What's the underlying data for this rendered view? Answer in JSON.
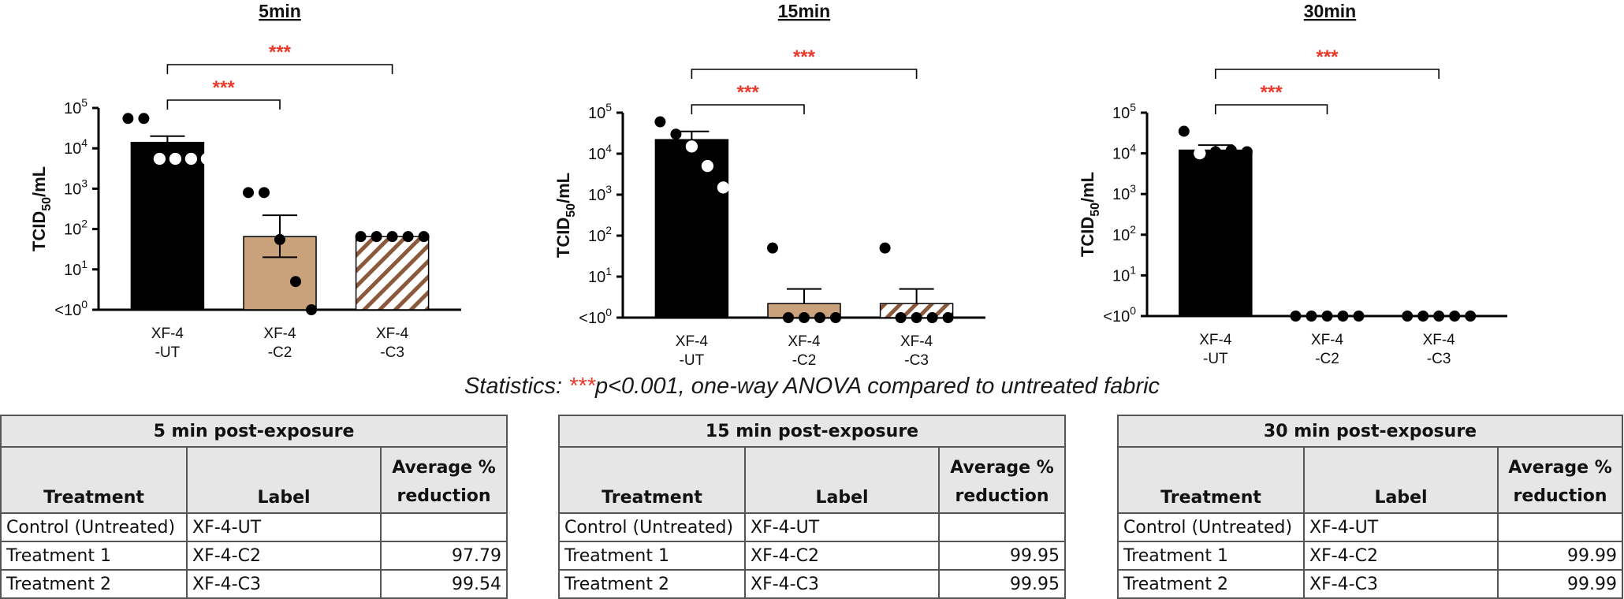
{
  "chart_data": [
    {
      "type": "bar",
      "title": "5min",
      "ylabel": "TCID50/mL",
      "yscale": "log",
      "ylim": [
        1,
        100000
      ],
      "yticks": [
        "<10^0",
        "10^1",
        "10^2",
        "10^3",
        "10^4",
        "10^5"
      ],
      "categories": [
        [
          "XF-4",
          "-UT"
        ],
        [
          "XF-4",
          "-C2"
        ],
        [
          "XF-4",
          "-C3"
        ]
      ],
      "values": [
        14000,
        65,
        65
      ],
      "error_upper": [
        20000,
        220,
        65
      ],
      "error_lower": [
        10000,
        20,
        65
      ],
      "points": [
        [
          55000,
          55000,
          5500,
          5500,
          5500,
          5500
        ],
        [
          800,
          800,
          55,
          5,
          1
        ],
        [
          65,
          65,
          65,
          65,
          65
        ]
      ],
      "significance": [
        {
          "from": 0,
          "to": 1,
          "label": "***"
        },
        {
          "from": 0,
          "to": 2,
          "label": "***"
        }
      ]
    },
    {
      "type": "bar",
      "title": "15min",
      "ylabel": "TCID50/mL",
      "yscale": "log",
      "ylim": [
        1,
        100000
      ],
      "yticks": [
        "<10^0",
        "10^1",
        "10^2",
        "10^3",
        "10^4",
        "10^5"
      ],
      "categories": [
        [
          "XF-4",
          "-UT"
        ],
        [
          "XF-4",
          "-C2"
        ],
        [
          "XF-4",
          "-C3"
        ]
      ],
      "values": [
        22000,
        2.2,
        2.2
      ],
      "error_upper": [
        35000,
        5,
        5
      ],
      "error_lower": [
        22000,
        2.2,
        2.2
      ],
      "points": [
        [
          60000,
          30000,
          15000,
          5000,
          1500
        ],
        [
          50,
          1,
          1,
          1,
          1
        ],
        [
          50,
          1,
          1,
          1,
          1
        ]
      ],
      "significance": [
        {
          "from": 0,
          "to": 1,
          "label": "***"
        },
        {
          "from": 0,
          "to": 2,
          "label": "***"
        }
      ]
    },
    {
      "type": "bar",
      "title": "30min",
      "ylabel": "TCID50/mL",
      "yscale": "log",
      "ylim": [
        1,
        100000
      ],
      "yticks": [
        "<10^0",
        "10^1",
        "10^2",
        "10^3",
        "10^4",
        "10^5"
      ],
      "categories": [
        [
          "XF-4",
          "-UT"
        ],
        [
          "XF-4",
          "-C2"
        ],
        [
          "XF-4",
          "-C3"
        ]
      ],
      "values": [
        12000,
        1,
        1
      ],
      "error_upper": [
        16000,
        1,
        1
      ],
      "error_lower": [
        12000,
        1,
        1
      ],
      "points": [
        [
          35000,
          10000,
          11000,
          12000,
          11000
        ],
        [
          1,
          1,
          1,
          1,
          1
        ],
        [
          1,
          1,
          1,
          1,
          1
        ]
      ],
      "significance": [
        {
          "from": 0,
          "to": 1,
          "label": "***"
        },
        {
          "from": 0,
          "to": 2,
          "label": "***"
        }
      ]
    }
  ],
  "statistics": {
    "prefix": "Statistics:",
    "stars": "***",
    "text": "p<0.001, one-way ANOVA compared to untreated fabric"
  },
  "tables": [
    {
      "title": "5 min post-exposure",
      "headers": [
        "Treatment",
        "Label",
        "Average %",
        "reduction"
      ],
      "rows": [
        [
          "Control (Untreated)",
          "XF-4-UT",
          ""
        ],
        [
          "Treatment 1",
          "XF-4-C2",
          "97.79"
        ],
        [
          "Treatment 2",
          "XF-4-C3",
          "99.54"
        ]
      ]
    },
    {
      "title": "15 min post-exposure",
      "headers": [
        "Treatment",
        "Label",
        "Average %",
        "reduction"
      ],
      "rows": [
        [
          "Control (Untreated)",
          "XF-4-UT",
          ""
        ],
        [
          "Treatment 1",
          "XF-4-C2",
          "99.95"
        ],
        [
          "Treatment 2",
          "XF-4-C3",
          "99.95"
        ]
      ]
    },
    {
      "title": "30 min post-exposure",
      "headers": [
        "Treatment",
        "Label",
        "Average %",
        "reduction"
      ],
      "rows": [
        [
          "Control (Untreated)",
          "XF-4-UT",
          ""
        ],
        [
          "Treatment 1",
          "XF-4-C2",
          "99.99"
        ],
        [
          "Treatment 2",
          "XF-4-C3",
          "99.99"
        ]
      ]
    }
  ],
  "colors": {
    "ut_bar": "#000000",
    "c2_bar": "#c9a27b",
    "c3_stripe": "#8b5a3c",
    "significance": "#e8392b",
    "header_bg": "#e6e6e6"
  }
}
